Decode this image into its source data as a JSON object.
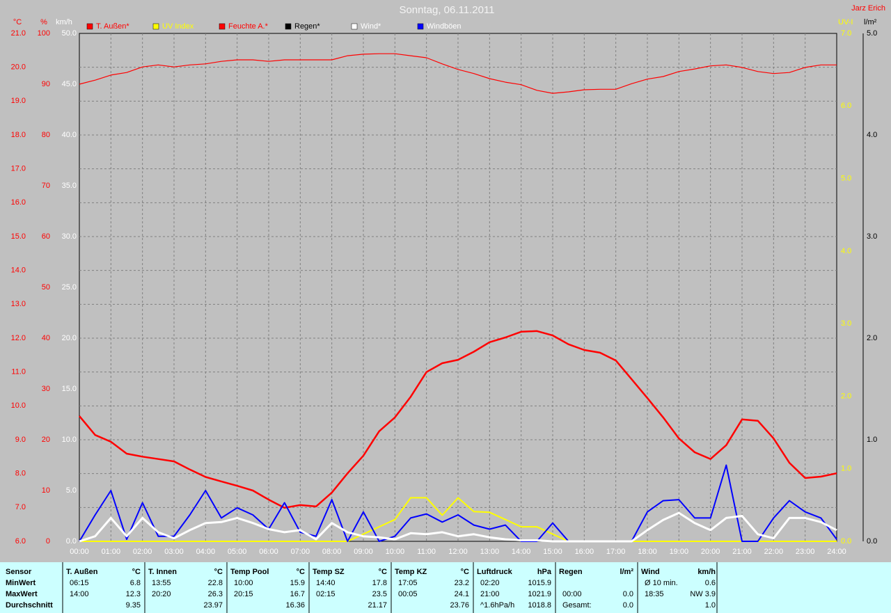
{
  "chart_data": {
    "type": "line",
    "title": "Sonntag, 06.11.2011",
    "grid": true,
    "axes": [
      {
        "label": "°C",
        "color": "#ff0000",
        "ylim": [
          6,
          21
        ],
        "yticks": [
          {
            "value": 6,
            "label": "6.0"
          },
          {
            "value": 7,
            "label": "7.0"
          },
          {
            "value": 8,
            "label": "8.0"
          },
          {
            "value": 9,
            "label": "9.0"
          },
          {
            "value": 10,
            "label": "10.0"
          },
          {
            "value": 11,
            "label": "11.0"
          },
          {
            "value": 12,
            "label": "12.0"
          },
          {
            "value": 13,
            "label": "13.0"
          },
          {
            "value": 14,
            "label": "14.0"
          },
          {
            "value": 15,
            "label": "15.0"
          },
          {
            "value": 16,
            "label": "16.0"
          },
          {
            "value": 17,
            "label": "17.0"
          },
          {
            "value": 18,
            "label": "18.0"
          },
          {
            "value": 19,
            "label": "19.0"
          },
          {
            "value": 20,
            "label": "20.0"
          },
          {
            "value": 21,
            "label": "21.0"
          }
        ]
      },
      {
        "label": "%",
        "color": "#ff0000",
        "ylim": [
          0,
          100
        ],
        "yticks": [
          0,
          10,
          20,
          30,
          40,
          50,
          60,
          70,
          80,
          90,
          100
        ]
      },
      {
        "label": "km/h",
        "color": "#ffffff",
        "ylim": [
          0,
          50
        ],
        "yticks": [
          {
            "value": 0,
            "label": "0.0"
          },
          {
            "value": 5,
            "label": "5.0"
          },
          {
            "value": 10,
            "label": "10.0"
          },
          {
            "value": 15,
            "label": "15.0"
          },
          {
            "value": 20,
            "label": "20.0"
          },
          {
            "value": 25,
            "label": "25.0"
          },
          {
            "value": 30,
            "label": "30.0"
          },
          {
            "value": 35,
            "label": "35.0"
          },
          {
            "value": 40,
            "label": "40.0"
          },
          {
            "value": 45,
            "label": "45.0"
          },
          {
            "value": 50,
            "label": "50.0"
          }
        ]
      },
      {
        "label": "UV-I",
        "color": "#ffff00",
        "ylim": [
          0,
          7
        ],
        "yticks": [
          {
            "value": 0,
            "label": "0.0"
          },
          {
            "value": 1,
            "label": "1.0"
          },
          {
            "value": 2,
            "label": "2.0"
          },
          {
            "value": 3,
            "label": "3.0"
          },
          {
            "value": 4,
            "label": "4.0"
          },
          {
            "value": 5,
            "label": "5.0"
          },
          {
            "value": 6,
            "label": "6.0"
          },
          {
            "value": 7,
            "label": "7.0"
          }
        ]
      },
      {
        "label": "l/m²",
        "color": "#000000",
        "ylim": [
          0,
          5
        ],
        "yticks": [
          {
            "value": 0,
            "label": "0.0"
          },
          {
            "value": 1,
            "label": "1.0"
          },
          {
            "value": 2,
            "label": "2.0"
          },
          {
            "value": 3,
            "label": "3.0"
          },
          {
            "value": 4,
            "label": "4.0"
          },
          {
            "value": 5,
            "label": "5.0"
          }
        ]
      }
    ],
    "xlim": [
      0,
      24
    ],
    "xticks": [
      {
        "value": 0,
        "label": "00:00"
      },
      {
        "value": 1,
        "label": "01:00"
      },
      {
        "value": 2,
        "label": "02:00"
      },
      {
        "value": 3,
        "label": "03:00"
      },
      {
        "value": 4,
        "label": "04:00"
      },
      {
        "value": 5,
        "label": "05:00"
      },
      {
        "value": 6,
        "label": "06:00"
      },
      {
        "value": 7,
        "label": "07:00"
      },
      {
        "value": 8,
        "label": "08:00"
      },
      {
        "value": 9,
        "label": "09:00"
      },
      {
        "value": 10,
        "label": "10:00"
      },
      {
        "value": 11,
        "label": "11:00"
      },
      {
        "value": 12,
        "label": "12:00"
      },
      {
        "value": 13,
        "label": "13:00"
      },
      {
        "value": 14,
        "label": "14:00"
      },
      {
        "value": 15,
        "label": "15:00"
      },
      {
        "value": 16,
        "label": "16:00"
      },
      {
        "value": 17,
        "label": "17:00"
      },
      {
        "value": 18,
        "label": "18:00"
      },
      {
        "value": 19,
        "label": "19:00"
      },
      {
        "value": 20,
        "label": "20:00"
      },
      {
        "value": 21,
        "label": "21:00"
      },
      {
        "value": 22,
        "label": "22:00"
      },
      {
        "value": 23,
        "label": "23:00"
      },
      {
        "value": 24,
        "label": "24:00"
      }
    ],
    "x": [
      0,
      0.5,
      1,
      1.5,
      2,
      2.5,
      3,
      3.5,
      4,
      4.5,
      5,
      5.5,
      6,
      6.5,
      7,
      7.5,
      8,
      8.5,
      9,
      9.5,
      10,
      10.5,
      11,
      11.5,
      12,
      12.5,
      13,
      13.5,
      14,
      14.5,
      15,
      15.5,
      16,
      16.5,
      17,
      17.5,
      18,
      18.5,
      19,
      19.5,
      20,
      20.5,
      21,
      21.5,
      22,
      22.5,
      23,
      23.5,
      24
    ],
    "series": [
      {
        "name": "T. Außen*",
        "color": "#ff0000",
        "axis": 0,
        "width": 2.5,
        "values": [
          9.7,
          9.14,
          8.94,
          8.59,
          8.5,
          8.43,
          8.36,
          8.12,
          7.9,
          7.77,
          7.64,
          7.5,
          7.23,
          6.99,
          7.07,
          7.03,
          7.44,
          8.01,
          8.53,
          9.25,
          9.66,
          10.27,
          11.0,
          11.26,
          11.36,
          11.6,
          11.88,
          12.02,
          12.19,
          12.21,
          12.08,
          11.82,
          11.65,
          11.57,
          11.34,
          10.79,
          10.23,
          9.66,
          9.04,
          8.63,
          8.43,
          8.84,
          9.6,
          9.56,
          9.04,
          8.32,
          7.87,
          7.91,
          8.01
        ]
      },
      {
        "name": "UV Index",
        "color": "#ffff00",
        "axis": 3,
        "width": 2,
        "values": [
          0,
          0,
          0,
          0,
          0,
          0,
          0,
          0,
          0,
          0,
          0,
          0,
          0,
          0,
          0,
          0,
          0,
          0,
          0.1,
          0.2,
          0.3,
          0.6,
          0.6,
          0.36,
          0.6,
          0.41,
          0.4,
          0.3,
          0.2,
          0.2,
          0.1,
          0,
          0,
          0,
          0,
          0,
          0,
          0,
          0,
          0,
          0,
          0,
          0,
          0,
          0,
          0,
          0,
          0,
          0
        ]
      },
      {
        "name": "Feuchte A.*",
        "color": "#ff0000",
        "axis": 1,
        "width": 1.2,
        "values": [
          90.0,
          90.8,
          91.8,
          92.3,
          93.4,
          93.8,
          93.4,
          93.8,
          94.0,
          94.5,
          94.8,
          94.8,
          94.5,
          94.8,
          94.8,
          94.8,
          94.8,
          95.6,
          95.9,
          96.0,
          96.0,
          95.6,
          95.2,
          94.0,
          92.9,
          92.1,
          91.1,
          90.4,
          89.9,
          88.8,
          88.2,
          88.5,
          88.9,
          89.0,
          89.0,
          90.1,
          91.0,
          91.5,
          92.5,
          93.0,
          93.6,
          93.8,
          93.3,
          92.5,
          92.1,
          92.3,
          93.3,
          93.8,
          93.8
        ]
      },
      {
        "name": "Regen*",
        "color": "#000000",
        "axis": 4,
        "width": 1,
        "values": [
          0,
          0,
          0,
          0,
          0,
          0,
          0,
          0,
          0,
          0,
          0,
          0,
          0,
          0,
          0,
          0,
          0,
          0,
          0,
          0,
          0,
          0,
          0,
          0,
          0,
          0,
          0,
          0,
          0,
          0,
          0,
          0,
          0,
          0,
          0,
          0,
          0,
          0,
          0,
          0,
          0,
          0,
          0,
          0,
          0,
          0,
          0,
          0,
          0
        ]
      },
      {
        "name": "Wind*",
        "color": "#ffffff",
        "axis": 2,
        "width": 3,
        "values": [
          0,
          0.5,
          2.3,
          0.5,
          2.3,
          0.9,
          0.3,
          1.1,
          1.8,
          1.9,
          2.3,
          1.8,
          1.2,
          0.9,
          1.1,
          0.2,
          1.8,
          0.9,
          0.5,
          0.4,
          0.2,
          0.8,
          0.7,
          0.9,
          0.5,
          0.7,
          0.4,
          0.2,
          0.1,
          0.1,
          0,
          0,
          0,
          0,
          0,
          0,
          1.1,
          2.1,
          2.8,
          1.8,
          1.1,
          2.3,
          2.5,
          0.7,
          0.3,
          2.3,
          2.3,
          1.9,
          1.1
        ]
      },
      {
        "name": "Windböen",
        "color": "#0000ff",
        "axis": 2,
        "width": 2,
        "values": [
          0,
          2.6,
          5.0,
          0.2,
          3.8,
          0.5,
          0.5,
          2.6,
          5.0,
          2.3,
          3.3,
          2.6,
          1.2,
          3.8,
          0.9,
          0.5,
          4.1,
          0,
          2.9,
          0,
          0.5,
          2.3,
          2.7,
          1.9,
          2.6,
          1.6,
          1.2,
          1.6,
          0,
          0,
          1.8,
          0,
          0,
          0,
          0,
          0,
          2.9,
          4.0,
          4.1,
          2.3,
          2.3,
          7.5,
          0,
          0,
          2.3,
          4.0,
          2.9,
          2.3,
          0.2
        ]
      }
    ]
  },
  "header": {
    "corner": "Jarz Erich"
  },
  "table": {
    "first_header": "Sensor",
    "row_labels": [
      "MinWert",
      "MaxWert",
      "Durchschnitt"
    ],
    "sections": [
      {
        "header": "T. Außen",
        "unit": "°C",
        "rows": [
          [
            "06:15",
            "6.8"
          ],
          [
            "14:00",
            "12.3"
          ],
          [
            null,
            "9.35"
          ]
        ]
      },
      {
        "header": "T. Innen",
        "unit": "°C",
        "rows": [
          [
            "13:55",
            "22.8"
          ],
          [
            "20:20",
            "26.3"
          ],
          [
            null,
            "23.97"
          ]
        ]
      },
      {
        "header": "Temp Pool",
        "unit": "°C",
        "rows": [
          [
            "10:00",
            "15.9"
          ],
          [
            "20:15",
            "16.7"
          ],
          [
            null,
            "16.36"
          ]
        ]
      },
      {
        "header": "Temp SZ",
        "unit": "°C",
        "rows": [
          [
            "14:40",
            "17.8"
          ],
          [
            "02:15",
            "23.5"
          ],
          [
            null,
            "21.17"
          ]
        ]
      },
      {
        "header": "Temp KZ",
        "unit": "°C",
        "rows": [
          [
            "17:05",
            "23.2"
          ],
          [
            "00:05",
            "24.1"
          ],
          [
            null,
            "23.76"
          ]
        ]
      },
      {
        "header": "Luftdruck",
        "unit": "hPa",
        "rows": [
          [
            "02:20",
            "1015.9"
          ],
          [
            "21:00",
            "1021.9"
          ],
          [
            "^1.6hPa/h",
            "1018.8"
          ]
        ]
      },
      {
        "header": "Regen",
        "unit": "l/m²",
        "rows": [
          [
            null,
            null
          ],
          [
            "00:00",
            "0.0"
          ],
          [
            "Gesamt:",
            "0.0"
          ]
        ]
      },
      {
        "header": "Wind",
        "unit": "km/h",
        "rows": [
          [
            "Ø 10 min.",
            "0.6"
          ],
          [
            "18:35",
            "NW 3.9"
          ],
          [
            null,
            "1.0"
          ]
        ]
      }
    ]
  }
}
